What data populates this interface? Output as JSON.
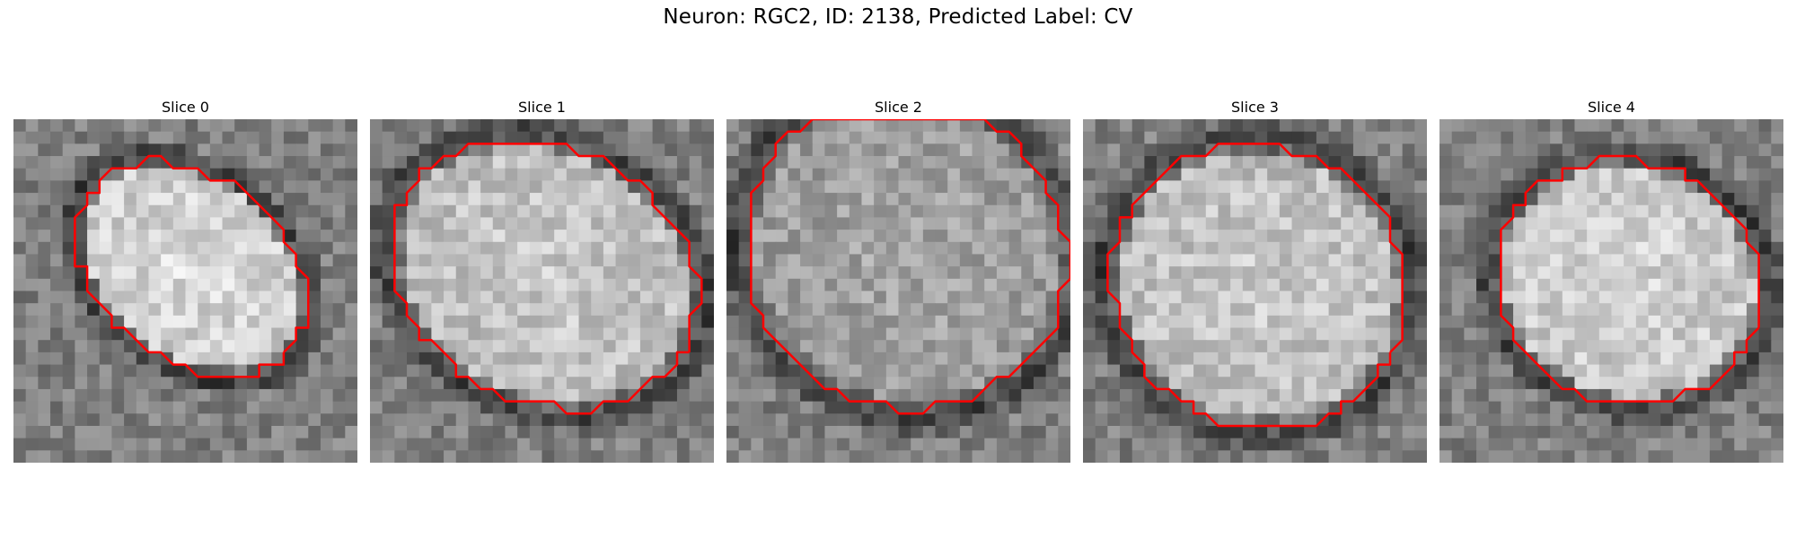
{
  "figure": {
    "title": "Neuron: RGC2, ID: 2138, Predicted Label: CV"
  },
  "contour_color": "#ff0000",
  "slices": [
    {
      "title": "Slice 0"
    },
    {
      "title": "Slice 1"
    },
    {
      "title": "Slice 2"
    },
    {
      "title": "Slice 3"
    },
    {
      "title": "Slice 4"
    }
  ]
}
